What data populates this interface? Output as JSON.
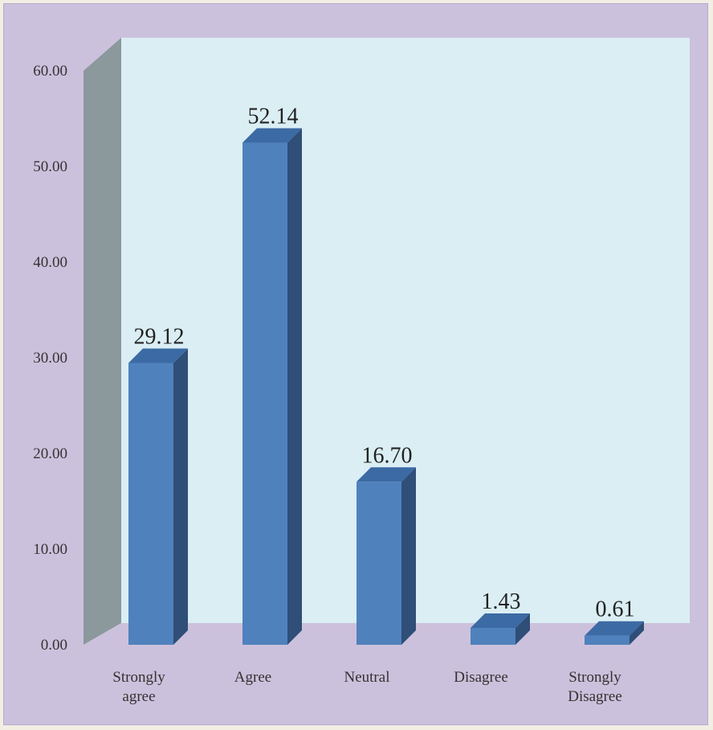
{
  "chart_data": {
    "type": "bar",
    "categories": [
      [
        "Strongly",
        "agree"
      ],
      [
        "Agree"
      ],
      [
        "Neutral"
      ],
      [
        "Disagree"
      ],
      [
        "Strongly",
        "Disagree"
      ]
    ],
    "values": [
      29.12,
      52.14,
      16.7,
      1.43,
      0.61
    ],
    "data_labels": [
      "29.12",
      "52.14",
      "16.70",
      "1.43",
      "0.61"
    ],
    "yticks": [
      "0.00",
      "10.00",
      "20.00",
      "30.00",
      "40.00",
      "50.00",
      "60.00"
    ],
    "ylim": [
      0,
      60
    ],
    "title": "",
    "xlabel": "",
    "ylabel": "",
    "legend": "none",
    "grid": false,
    "three_d": true,
    "colors": {
      "bar_front": "#4f81bd",
      "bar_side": "#2f4e78",
      "bar_top": "#3c6aa4",
      "back_wall": "#daeef4",
      "side_wall": "#8b989c",
      "floor": "#ccc1dc"
    }
  }
}
